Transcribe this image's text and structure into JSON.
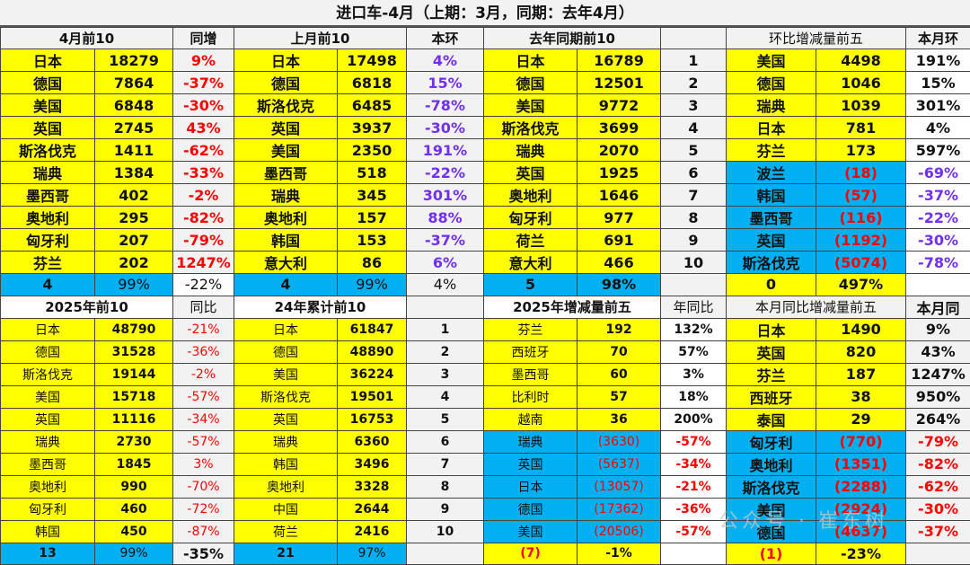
{
  "title": "进口车-4月（上期：3月，同期：去年4月）",
  "top": {
    "headers": {
      "apr_top10": "4月前10",
      "apr_yoy": "同增",
      "last_month_top10": "上月前10",
      "mom": "本环",
      "last_year_top10": "去年同期前10",
      "rank": "",
      "mom_change_top5": "环比增减量前五",
      "month_mom": "本月环"
    },
    "rows": [
      {
        "apr_country": "日本",
        "apr_value": "18279",
        "apr_yoy": "9%",
        "lm_country": "日本",
        "lm_value": "17498",
        "mom": "4%",
        "ly_country": "日本",
        "ly_value": "16789",
        "rank": "1",
        "chg_country": "美国",
        "chg_value": "4498",
        "chg_pct": "191%"
      },
      {
        "apr_country": "德国",
        "apr_value": "7864",
        "apr_yoy": "-37%",
        "lm_country": "德国",
        "lm_value": "6818",
        "mom": "15%",
        "ly_country": "德国",
        "ly_value": "12501",
        "rank": "2",
        "chg_country": "德国",
        "chg_value": "1046",
        "chg_pct": "15%"
      },
      {
        "apr_country": "美国",
        "apr_value": "6848",
        "apr_yoy": "-30%",
        "lm_country": "斯洛伐克",
        "lm_value": "6485",
        "mom": "-78%",
        "ly_country": "美国",
        "ly_value": "9772",
        "rank": "3",
        "chg_country": "瑞典",
        "chg_value": "1039",
        "chg_pct": "301%"
      },
      {
        "apr_country": "英国",
        "apr_value": "2745",
        "apr_yoy": "43%",
        "lm_country": "英国",
        "lm_value": "3937",
        "mom": "-30%",
        "ly_country": "斯洛伐克",
        "ly_value": "3699",
        "rank": "4",
        "chg_country": "日本",
        "chg_value": "781",
        "chg_pct": "4%"
      },
      {
        "apr_country": "斯洛伐克",
        "apr_value": "1411",
        "apr_yoy": "-62%",
        "lm_country": "美国",
        "lm_value": "2350",
        "mom": "191%",
        "ly_country": "瑞典",
        "ly_value": "2070",
        "rank": "5",
        "chg_country": "芬兰",
        "chg_value": "173",
        "chg_pct": "597%"
      },
      {
        "apr_country": "瑞典",
        "apr_value": "1384",
        "apr_yoy": "-33%",
        "lm_country": "墨西哥",
        "lm_value": "518",
        "mom": "-22%",
        "ly_country": "英国",
        "ly_value": "1925",
        "rank": "6",
        "chg_country": "波兰",
        "chg_value": "(18)",
        "chg_pct": "-69%"
      },
      {
        "apr_country": "墨西哥",
        "apr_value": "402",
        "apr_yoy": "-2%",
        "lm_country": "瑞典",
        "lm_value": "345",
        "mom": "301%",
        "ly_country": "奥地利",
        "ly_value": "1646",
        "rank": "7",
        "chg_country": "韩国",
        "chg_value": "(57)",
        "chg_pct": "-37%"
      },
      {
        "apr_country": "奥地利",
        "apr_value": "295",
        "apr_yoy": "-82%",
        "lm_country": "奥地利",
        "lm_value": "157",
        "mom": "88%",
        "ly_country": "匈牙利",
        "ly_value": "977",
        "rank": "8",
        "chg_country": "墨西哥",
        "chg_value": "(116)",
        "chg_pct": "-22%"
      },
      {
        "apr_country": "匈牙利",
        "apr_value": "207",
        "apr_yoy": "-79%",
        "lm_country": "韩国",
        "lm_value": "153",
        "mom": "-37%",
        "ly_country": "荷兰",
        "ly_value": "691",
        "rank": "9",
        "chg_country": "英国",
        "chg_value": "(1192)",
        "chg_pct": "-30%"
      },
      {
        "apr_country": "芬兰",
        "apr_value": "202",
        "apr_yoy": "1247%",
        "lm_country": "意大利",
        "lm_value": "86",
        "mom": "6%",
        "ly_country": "意大利",
        "ly_value": "466",
        "rank": "10",
        "chg_country": "斯洛伐克",
        "chg_value": "(5074)",
        "chg_pct": "-78%"
      }
    ],
    "summary": {
      "apr_count": "4",
      "apr_share": "99%",
      "apr_yoy": "-22%",
      "lm_count": "4",
      "lm_share": "99%",
      "mom": "4%",
      "ly_count": "5",
      "ly_share": "98%",
      "rank": "",
      "chg_count": "0",
      "chg_pct": "497%",
      "chg_month": ""
    }
  },
  "bottom": {
    "headers": {
      "ytd_top10": "2025年前10",
      "ytd_yoy": "同比",
      "last_year_ytd_top10": "24年累计前10",
      "rank": "",
      "ytd_change_top5": "2025年增减量前五",
      "ytd_change_yoy": "年同比",
      "month_yoy_change_top5": "本月同比增减量前五",
      "month_yoy": "本月同"
    },
    "rows": [
      {
        "ytd_country": "日本",
        "ytd_value": "48790",
        "ytd_yoy": "-21%",
        "ly_country": "日本",
        "ly_value": "61847",
        "rank": "1",
        "yc_country": "芬兰",
        "yc_value": "192",
        "yc_pct": "132%",
        "mc_country": "日本",
        "mc_value": "1490",
        "mc_pct": "9%"
      },
      {
        "ytd_country": "德国",
        "ytd_value": "31528",
        "ytd_yoy": "-36%",
        "ly_country": "德国",
        "ly_value": "48890",
        "rank": "2",
        "yc_country": "西班牙",
        "yc_value": "70",
        "yc_pct": "57%",
        "mc_country": "英国",
        "mc_value": "820",
        "mc_pct": "43%"
      },
      {
        "ytd_country": "斯洛伐克",
        "ytd_value": "19144",
        "ytd_yoy": "-2%",
        "ly_country": "美国",
        "ly_value": "36224",
        "rank": "3",
        "yc_country": "墨西哥",
        "yc_value": "60",
        "yc_pct": "3%",
        "mc_country": "芬兰",
        "mc_value": "187",
        "mc_pct": "1247%"
      },
      {
        "ytd_country": "美国",
        "ytd_value": "15718",
        "ytd_yoy": "-57%",
        "ly_country": "斯洛伐克",
        "ly_value": "19501",
        "rank": "4",
        "yc_country": "比利时",
        "yc_value": "57",
        "yc_pct": "18%",
        "mc_country": "西班牙",
        "mc_value": "38",
        "mc_pct": "950%"
      },
      {
        "ytd_country": "英国",
        "ytd_value": "11116",
        "ytd_yoy": "-34%",
        "ly_country": "英国",
        "ly_value": "16753",
        "rank": "5",
        "yc_country": "越南",
        "yc_value": "36",
        "yc_pct": "200%",
        "mc_country": "泰国",
        "mc_value": "29",
        "mc_pct": "264%"
      },
      {
        "ytd_country": "瑞典",
        "ytd_value": "2730",
        "ytd_yoy": "-57%",
        "ly_country": "瑞典",
        "ly_value": "6360",
        "rank": "6",
        "yc_country": "瑞典",
        "yc_value": "(3630)",
        "yc_pct": "-57%",
        "mc_country": "匈牙利",
        "mc_value": "(770)",
        "mc_pct": "-79%"
      },
      {
        "ytd_country": "墨西哥",
        "ytd_value": "1845",
        "ytd_yoy": "3%",
        "ly_country": "韩国",
        "ly_value": "3496",
        "rank": "7",
        "yc_country": "英国",
        "yc_value": "(5637)",
        "yc_pct": "-34%",
        "mc_country": "奥地利",
        "mc_value": "(1351)",
        "mc_pct": "-82%"
      },
      {
        "ytd_country": "奥地利",
        "ytd_value": "990",
        "ytd_yoy": "-70%",
        "ly_country": "奥地利",
        "ly_value": "3328",
        "rank": "8",
        "yc_country": "日本",
        "yc_value": "(13057)",
        "yc_pct": "-21%",
        "mc_country": "斯洛伐克",
        "mc_value": "(2288)",
        "mc_pct": "-62%"
      },
      {
        "ytd_country": "匈牙利",
        "ytd_value": "460",
        "ytd_yoy": "-72%",
        "ly_country": "中国",
        "ly_value": "2644",
        "rank": "9",
        "yc_country": "德国",
        "yc_value": "(17362)",
        "yc_pct": "-36%",
        "mc_country": "美国",
        "mc_value": "(2924)",
        "mc_pct": "-30%"
      },
      {
        "ytd_country": "韩国",
        "ytd_value": "450",
        "ytd_yoy": "-87%",
        "ly_country": "荷兰",
        "ly_value": "2416",
        "rank": "10",
        "yc_country": "美国",
        "yc_value": "(20506)",
        "yc_pct": "-57%",
        "mc_country": "德国",
        "mc_value": "(4637)",
        "mc_pct": "-37%"
      }
    ],
    "summary": {
      "ytd_count": "13",
      "ytd_share": "99%",
      "ytd_yoy": "-35%",
      "ly_count": "21",
      "ly_share": "97%",
      "rank": "",
      "yc_count": "(7)",
      "yc_pct": "-1%",
      "yc_blank": "",
      "mc_count": "(1)",
      "mc_pct": "-23%",
      "mc_blank": ""
    }
  },
  "watermark": "公众号 · 崔东树",
  "colors": {
    "highlight_yellow": "#ffff00",
    "negative_blue": "#00b0f0",
    "red_text": "#ff0000",
    "purple_text": "#7030f0",
    "grid_gray": "#f2f2f2"
  }
}
